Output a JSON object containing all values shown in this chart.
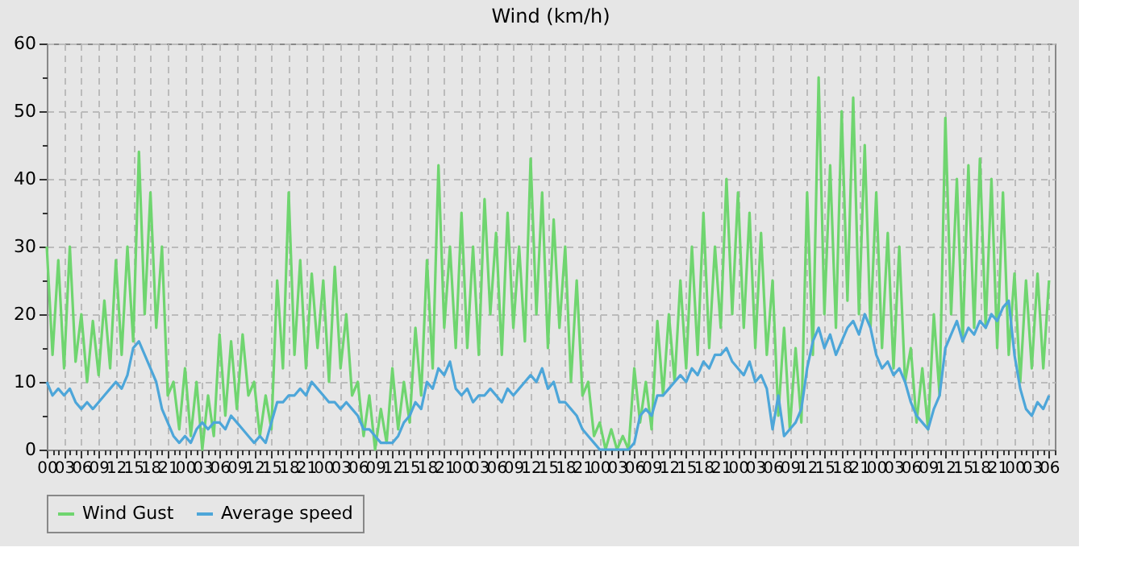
{
  "chart_data": {
    "type": "line",
    "title": "Wind (km/h)",
    "x": [
      0,
      1,
      2,
      3,
      4,
      5,
      6,
      7,
      8,
      9,
      10,
      11,
      12,
      13,
      14,
      15,
      16,
      17,
      18,
      19,
      20,
      21,
      22,
      23,
      24,
      25,
      26,
      27,
      28,
      29,
      30,
      31,
      32,
      33,
      34,
      35,
      36,
      37,
      38,
      39,
      40,
      41,
      42,
      43,
      44,
      45,
      46,
      47,
      48,
      49,
      50,
      51,
      52,
      53,
      54,
      55,
      56,
      57,
      58,
      59,
      60,
      61,
      62,
      63,
      64,
      65,
      66,
      67,
      68,
      69,
      70,
      71,
      72,
      73,
      74,
      75,
      76,
      77,
      78,
      79,
      80,
      81,
      82,
      83,
      84,
      85,
      86,
      87,
      88,
      89,
      90,
      91,
      92,
      93,
      94,
      95,
      96,
      97,
      98,
      99,
      100,
      101,
      102,
      103,
      104,
      105,
      106,
      107,
      108,
      109,
      110,
      111,
      112,
      113,
      114,
      115,
      116,
      117,
      118,
      119,
      120,
      121,
      122,
      123,
      124,
      125,
      126,
      127,
      128,
      129,
      130,
      131,
      132,
      133,
      134,
      135,
      136,
      137,
      138,
      139,
      140,
      141,
      142,
      143,
      144,
      145,
      146,
      147,
      148,
      149,
      150,
      151,
      152,
      153,
      154,
      155,
      156,
      157,
      158,
      159,
      160,
      161,
      162,
      163,
      164,
      165,
      166,
      167,
      168,
      169,
      170,
      171,
      172,
      173,
      174
    ],
    "series": [
      {
        "name": "Wind Gust",
        "color": "#6fd56f",
        "values": [
          30,
          14,
          28,
          12,
          30,
          13,
          20,
          10,
          19,
          11,
          22,
          12,
          28,
          14,
          30,
          16,
          44,
          20,
          38,
          18,
          30,
          8,
          10,
          3,
          12,
          2,
          10,
          0,
          8,
          2,
          17,
          5,
          16,
          6,
          17,
          8,
          10,
          2,
          8,
          3,
          25,
          12,
          38,
          14,
          28,
          12,
          26,
          15,
          25,
          10,
          27,
          12,
          20,
          8,
          10,
          2,
          8,
          0,
          6,
          1,
          12,
          3,
          10,
          4,
          18,
          8,
          28,
          12,
          42,
          18,
          30,
          15,
          35,
          15,
          30,
          14,
          37,
          20,
          32,
          14,
          35,
          18,
          30,
          16,
          43,
          20,
          38,
          15,
          34,
          18,
          30,
          10,
          25,
          8,
          10,
          2,
          4,
          0,
          3,
          0,
          2,
          0,
          12,
          4,
          10,
          3,
          19,
          8,
          20,
          10,
          25,
          12,
          30,
          14,
          35,
          15,
          30,
          18,
          40,
          20,
          38,
          18,
          35,
          15,
          32,
          14,
          25,
          5,
          18,
          3,
          15,
          4,
          38,
          14,
          55,
          20,
          42,
          18,
          50,
          22,
          52,
          20,
          45,
          18,
          38,
          15,
          32,
          12,
          30,
          10,
          15,
          4,
          12,
          3,
          20,
          8,
          49,
          20,
          40,
          16,
          42,
          18,
          43,
          18,
          40,
          15,
          38,
          14,
          26,
          10,
          25,
          12,
          26,
          12,
          25
        ]
      },
      {
        "name": "Average speed",
        "color": "#4da6d9",
        "values": [
          10,
          8,
          9,
          8,
          9,
          7,
          6,
          7,
          6,
          7,
          8,
          9,
          10,
          9,
          11,
          15,
          16,
          14,
          12,
          10,
          6,
          4,
          2,
          1,
          2,
          1,
          3,
          4,
          3,
          4,
          4,
          3,
          5,
          4,
          3,
          2,
          1,
          2,
          1,
          4,
          7,
          7,
          8,
          8,
          9,
          8,
          10,
          9,
          8,
          7,
          7,
          6,
          7,
          6,
          5,
          3,
          3,
          2,
          1,
          1,
          1,
          2,
          4,
          5,
          7,
          6,
          10,
          9,
          12,
          11,
          13,
          9,
          8,
          9,
          7,
          8,
          8,
          9,
          8,
          7,
          9,
          8,
          9,
          10,
          11,
          10,
          12,
          9,
          10,
          7,
          7,
          6,
          5,
          3,
          2,
          1,
          0,
          0,
          0,
          0,
          0,
          0,
          1,
          5,
          6,
          5,
          8,
          8,
          9,
          10,
          11,
          10,
          12,
          11,
          13,
          12,
          14,
          14,
          15,
          13,
          12,
          11,
          13,
          10,
          11,
          9,
          3,
          8,
          2,
          3,
          4,
          6,
          12,
          16,
          18,
          15,
          17,
          14,
          16,
          18,
          19,
          17,
          20,
          18,
          14,
          12,
          13,
          11,
          12,
          10,
          7,
          5,
          4,
          3,
          6,
          8,
          15,
          17,
          19,
          16,
          18,
          17,
          19,
          18,
          20,
          19,
          21,
          22,
          14,
          9,
          6,
          5,
          7,
          6,
          8
        ]
      }
    ],
    "xlim": [
      0,
      175
    ],
    "xticks": [
      {
        "value": 0,
        "label": "00"
      },
      {
        "value": 1,
        "label": null
      },
      {
        "value": 2,
        "label": null
      },
      {
        "value": 3,
        "label": "03"
      },
      {
        "value": 4,
        "label": null
      },
      {
        "value": 5,
        "label": null
      },
      {
        "value": 6,
        "label": "06"
      },
      {
        "value": 7,
        "label": null
      },
      {
        "value": 8,
        "label": null
      },
      {
        "value": 9,
        "label": "09"
      },
      {
        "value": 10,
        "label": null
      },
      {
        "value": 11,
        "label": null
      },
      {
        "value": 12,
        "label": "12"
      },
      {
        "value": 13,
        "label": null
      },
      {
        "value": 14,
        "label": null
      },
      {
        "value": 15,
        "label": "15"
      },
      {
        "value": 16,
        "label": null
      },
      {
        "value": 17,
        "label": null
      },
      {
        "value": 18,
        "label": "18"
      },
      {
        "value": 19,
        "label": null
      },
      {
        "value": 20,
        "label": null
      },
      {
        "value": 21,
        "label": "21"
      },
      {
        "value": 22,
        "label": null
      },
      {
        "value": 23,
        "label": null
      },
      {
        "value": 24,
        "label": "00"
      },
      {
        "value": 25,
        "label": null
      },
      {
        "value": 26,
        "label": null
      },
      {
        "value": 27,
        "label": "03"
      },
      {
        "value": 28,
        "label": null
      },
      {
        "value": 29,
        "label": null
      },
      {
        "value": 30,
        "label": "06"
      },
      {
        "value": 31,
        "label": null
      },
      {
        "value": 32,
        "label": null
      },
      {
        "value": 33,
        "label": "09"
      },
      {
        "value": 34,
        "label": null
      },
      {
        "value": 35,
        "label": null
      },
      {
        "value": 36,
        "label": "12"
      },
      {
        "value": 37,
        "label": null
      },
      {
        "value": 38,
        "label": null
      },
      {
        "value": 39,
        "label": "15"
      },
      {
        "value": 40,
        "label": null
      },
      {
        "value": 41,
        "label": null
      },
      {
        "value": 42,
        "label": "18"
      },
      {
        "value": 43,
        "label": null
      },
      {
        "value": 44,
        "label": null
      },
      {
        "value": 45,
        "label": "21"
      },
      {
        "value": 46,
        "label": null
      },
      {
        "value": 47,
        "label": null
      },
      {
        "value": 48,
        "label": "00"
      },
      {
        "value": 49,
        "label": null
      },
      {
        "value": 50,
        "label": null
      },
      {
        "value": 51,
        "label": "03"
      },
      {
        "value": 52,
        "label": null
      },
      {
        "value": 53,
        "label": null
      },
      {
        "value": 54,
        "label": "06"
      },
      {
        "value": 55,
        "label": null
      },
      {
        "value": 56,
        "label": null
      },
      {
        "value": 57,
        "label": "09"
      },
      {
        "value": 58,
        "label": null
      },
      {
        "value": 59,
        "label": null
      },
      {
        "value": 60,
        "label": "12"
      },
      {
        "value": 61,
        "label": null
      },
      {
        "value": 62,
        "label": null
      },
      {
        "value": 63,
        "label": "15"
      },
      {
        "value": 64,
        "label": null
      },
      {
        "value": 65,
        "label": null
      },
      {
        "value": 66,
        "label": "18"
      },
      {
        "value": 67,
        "label": null
      },
      {
        "value": 68,
        "label": null
      },
      {
        "value": 69,
        "label": "21"
      },
      {
        "value": 70,
        "label": null
      },
      {
        "value": 71,
        "label": null
      },
      {
        "value": 72,
        "label": "00"
      },
      {
        "value": 73,
        "label": null
      },
      {
        "value": 74,
        "label": null
      },
      {
        "value": 75,
        "label": "03"
      },
      {
        "value": 76,
        "label": null
      },
      {
        "value": 77,
        "label": null
      },
      {
        "value": 78,
        "label": "06"
      },
      {
        "value": 79,
        "label": null
      },
      {
        "value": 80,
        "label": null
      },
      {
        "value": 81,
        "label": "09"
      },
      {
        "value": 82,
        "label": null
      },
      {
        "value": 83,
        "label": null
      },
      {
        "value": 84,
        "label": "12"
      },
      {
        "value": 85,
        "label": null
      },
      {
        "value": 86,
        "label": null
      },
      {
        "value": 87,
        "label": "15"
      },
      {
        "value": 88,
        "label": null
      },
      {
        "value": 89,
        "label": null
      },
      {
        "value": 90,
        "label": "18"
      },
      {
        "value": 91,
        "label": null
      },
      {
        "value": 92,
        "label": null
      },
      {
        "value": 93,
        "label": "21"
      },
      {
        "value": 94,
        "label": null
      },
      {
        "value": 95,
        "label": null
      },
      {
        "value": 96,
        "label": "00"
      },
      {
        "value": 97,
        "label": null
      },
      {
        "value": 98,
        "label": null
      },
      {
        "value": 99,
        "label": "03"
      },
      {
        "value": 100,
        "label": null
      },
      {
        "value": 101,
        "label": null
      },
      {
        "value": 102,
        "label": "06"
      },
      {
        "value": 103,
        "label": null
      },
      {
        "value": 104,
        "label": null
      },
      {
        "value": 105,
        "label": "09"
      },
      {
        "value": 106,
        "label": null
      },
      {
        "value": 107,
        "label": null
      },
      {
        "value": 108,
        "label": "12"
      },
      {
        "value": 109,
        "label": null
      },
      {
        "value": 110,
        "label": null
      },
      {
        "value": 111,
        "label": "15"
      },
      {
        "value": 112,
        "label": null
      },
      {
        "value": 113,
        "label": null
      },
      {
        "value": 114,
        "label": "18"
      },
      {
        "value": 115,
        "label": null
      },
      {
        "value": 116,
        "label": null
      },
      {
        "value": 117,
        "label": "21"
      },
      {
        "value": 118,
        "label": null
      },
      {
        "value": 119,
        "label": null
      },
      {
        "value": 120,
        "label": "00"
      },
      {
        "value": 121,
        "label": null
      },
      {
        "value": 122,
        "label": null
      },
      {
        "value": 123,
        "label": "03"
      },
      {
        "value": 124,
        "label": null
      },
      {
        "value": 125,
        "label": null
      },
      {
        "value": 126,
        "label": "06"
      },
      {
        "value": 127,
        "label": null
      },
      {
        "value": 128,
        "label": null
      },
      {
        "value": 129,
        "label": "09"
      },
      {
        "value": 130,
        "label": null
      },
      {
        "value": 131,
        "label": null
      },
      {
        "value": 132,
        "label": "12"
      },
      {
        "value": 133,
        "label": null
      },
      {
        "value": 134,
        "label": null
      },
      {
        "value": 135,
        "label": "15"
      },
      {
        "value": 136,
        "label": null
      },
      {
        "value": 137,
        "label": null
      },
      {
        "value": 138,
        "label": "18"
      },
      {
        "value": 139,
        "label": null
      },
      {
        "value": 140,
        "label": null
      },
      {
        "value": 141,
        "label": "21"
      },
      {
        "value": 142,
        "label": null
      },
      {
        "value": 143,
        "label": null
      },
      {
        "value": 144,
        "label": "00"
      },
      {
        "value": 145,
        "label": null
      },
      {
        "value": 146,
        "label": null
      },
      {
        "value": 147,
        "label": "03"
      },
      {
        "value": 148,
        "label": null
      },
      {
        "value": 149,
        "label": null
      },
      {
        "value": 150,
        "label": "06"
      },
      {
        "value": 151,
        "label": null
      },
      {
        "value": 152,
        "label": null
      },
      {
        "value": 153,
        "label": "09"
      },
      {
        "value": 154,
        "label": null
      },
      {
        "value": 155,
        "label": null
      },
      {
        "value": 156,
        "label": "12"
      },
      {
        "value": 157,
        "label": null
      },
      {
        "value": 158,
        "label": null
      },
      {
        "value": 159,
        "label": "15"
      },
      {
        "value": 160,
        "label": null
      },
      {
        "value": 161,
        "label": null
      },
      {
        "value": 162,
        "label": "18"
      },
      {
        "value": 163,
        "label": null
      },
      {
        "value": 164,
        "label": null
      },
      {
        "value": 165,
        "label": "21"
      },
      {
        "value": 166,
        "label": null
      },
      {
        "value": 167,
        "label": null
      },
      {
        "value": 168,
        "label": "00"
      },
      {
        "value": 169,
        "label": null
      },
      {
        "value": 170,
        "label": null
      },
      {
        "value": 171,
        "label": "03"
      },
      {
        "value": 172,
        "label": null
      },
      {
        "value": 173,
        "label": null
      },
      {
        "value": 174,
        "label": "06"
      },
      {
        "value": 175,
        "label": null
      }
    ],
    "ylim": [
      0,
      60
    ],
    "yticks": [
      0,
      {
        "value": 5,
        "label": null
      },
      10,
      {
        "value": 15,
        "label": null
      },
      20,
      {
        "value": 25,
        "label": null
      },
      30,
      {
        "value": 35,
        "label": null
      },
      40,
      {
        "value": 45,
        "label": null
      },
      50,
      {
        "value": 55,
        "label": null
      },
      60
    ],
    "grid": true,
    "legend": "bottom"
  }
}
